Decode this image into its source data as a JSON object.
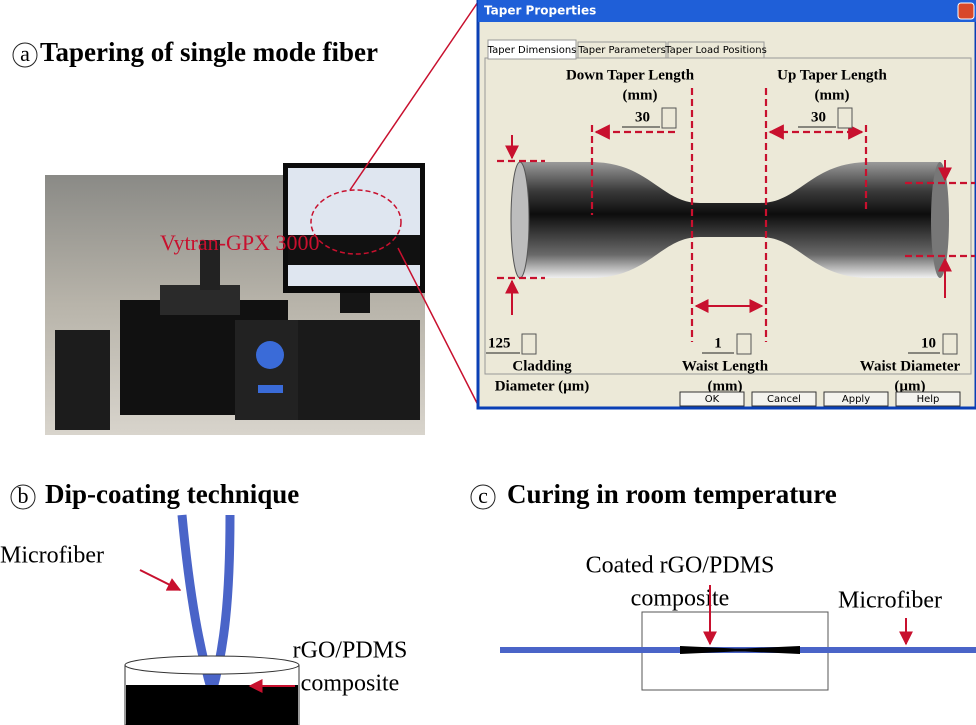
{
  "panel_a": {
    "label": "a",
    "title": "Tapering of single mode fiber",
    "photo_label": "Vytran-GPX 3000"
  },
  "dialog": {
    "title": "Taper Properties",
    "tabs": [
      "Taper Dimensions",
      "Taper Parameters",
      "Taper Load Positions"
    ],
    "down_taper": {
      "label": "Down Taper Length",
      "unit": "(mm)",
      "value": 30
    },
    "up_taper": {
      "label": "Up Taper Length",
      "unit": "(mm)",
      "value": 30
    },
    "cladding": {
      "value": 125,
      "label": "Cladding",
      "label2": "Diameter (µm)"
    },
    "waist_length": {
      "value": 1,
      "label": "Waist Length",
      "unit": "(mm)"
    },
    "waist_diameter": {
      "value": 10,
      "label": "Waist Diameter",
      "unit": "(µm)"
    },
    "buttons": [
      "OK",
      "Cancel",
      "Apply",
      "Help"
    ]
  },
  "panel_b": {
    "label": "b",
    "title": "Dip-coating technique",
    "fiber_label": "Microfiber",
    "composite_label": [
      "rGO/PDMS",
      "composite"
    ]
  },
  "panel_c": {
    "label": "c",
    "title": "Curing in room temperature",
    "coating_label": [
      "Coated rGO/PDMS",
      "composite"
    ],
    "fiber_label": "Microfiber"
  }
}
